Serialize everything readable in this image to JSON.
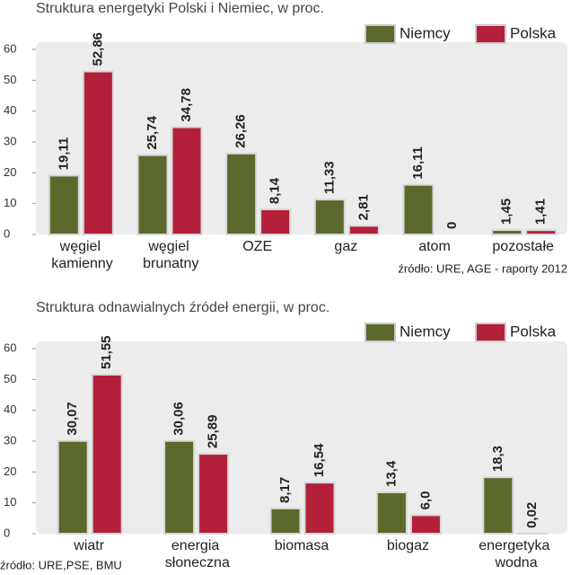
{
  "chart_data": [
    {
      "type": "bar",
      "title": "Struktura energetyki Polski i Niemiec, w proc.",
      "categories": [
        "węgiel kamienny",
        "węgiel brunatny",
        "OZE",
        "gaz",
        "atom",
        "pozostałe"
      ],
      "series": [
        {
          "name": "Niemcy",
          "color": "#5b6a2c",
          "values": [
            19.11,
            25.74,
            26.26,
            11.33,
            16.11,
            1.45
          ],
          "value_labels": [
            "19,11",
            "25,74",
            "26,26",
            "11,33",
            "16,11",
            "1,45"
          ]
        },
        {
          "name": "Polska",
          "color": "#b3203a",
          "values": [
            52.86,
            34.78,
            8.14,
            2.81,
            0,
            1.41
          ],
          "value_labels": [
            "52,86",
            "34,78",
            "8,14",
            "2,81",
            "0",
            "1,41"
          ]
        }
      ],
      "ylim": [
        0,
        60
      ],
      "yticks": [
        0,
        10,
        20,
        30,
        40,
        50,
        60
      ],
      "source": "źródło: URE, AGE - raporty 2012"
    },
    {
      "type": "bar",
      "title": "Struktura odnawialnych źródeł energii, w proc.",
      "categories": [
        "wiatr",
        "energia słoneczna",
        "biomasa",
        "biogaz",
        "energetyka wodna"
      ],
      "series": [
        {
          "name": "Niemcy",
          "color": "#5b6a2c",
          "values": [
            30.07,
            30.06,
            8.17,
            13.4,
            18.3
          ],
          "value_labels": [
            "30,07",
            "30,06",
            "8,17",
            "13,4",
            "18,3"
          ]
        },
        {
          "name": "Polska",
          "color": "#b3203a",
          "values": [
            51.55,
            25.89,
            16.54,
            6.0,
            0.02
          ],
          "value_labels": [
            "51,55",
            "25,89",
            "16,54",
            "6,0",
            "0,02"
          ]
        }
      ],
      "ylim": [
        0,
        60
      ],
      "yticks": [
        0,
        10,
        20,
        30,
        40,
        50,
        60
      ],
      "source": "źródło: URE,PSE, BMU"
    }
  ]
}
